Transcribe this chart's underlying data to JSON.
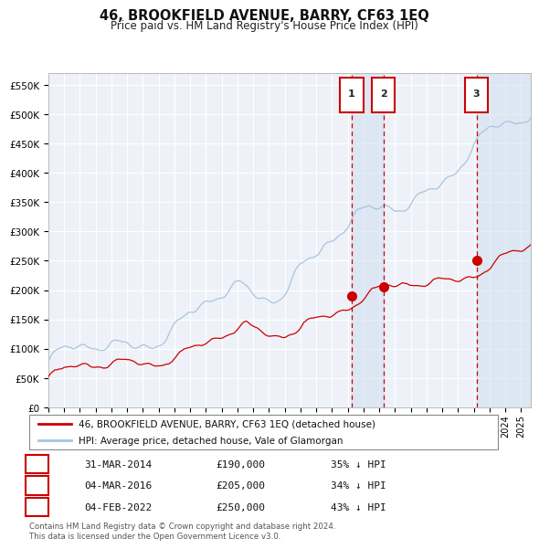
{
  "title": "46, BROOKFIELD AVENUE, BARRY, CF63 1EQ",
  "subtitle": "Price paid vs. HM Land Registry's House Price Index (HPI)",
  "ylim": [
    0,
    570000
  ],
  "yticks": [
    0,
    50000,
    100000,
    150000,
    200000,
    250000,
    300000,
    350000,
    400000,
    450000,
    500000,
    550000
  ],
  "ytick_labels": [
    "£0",
    "£50K",
    "£100K",
    "£150K",
    "£200K",
    "£250K",
    "£300K",
    "£350K",
    "£400K",
    "£450K",
    "£500K",
    "£550K"
  ],
  "hpi_color": "#a8c4e0",
  "price_color": "#cc0000",
  "marker_color": "#cc0000",
  "vline_color": "#cc0000",
  "shade_color": "#ccddf0",
  "background_color": "#eef2f8",
  "grid_color": "#ffffff",
  "sale_prices": [
    190000,
    205000,
    250000
  ],
  "sale_labels": [
    "1",
    "2",
    "3"
  ],
  "sale_date_strs": [
    "31-MAR-2014",
    "04-MAR-2016",
    "04-FEB-2022"
  ],
  "sale_pcts": [
    "35% ↓ HPI",
    "34% ↓ HPI",
    "43% ↓ HPI"
  ],
  "legend_red_label": "46, BROOKFIELD AVENUE, BARRY, CF63 1EQ (detached house)",
  "legend_blue_label": "HPI: Average price, detached house, Vale of Glamorgan",
  "footnote": "Contains HM Land Registry data © Crown copyright and database right 2024.\nThis data is licensed under the Open Government Licence v3.0.",
  "x_start_year": 1995,
  "x_end_year": 2025
}
